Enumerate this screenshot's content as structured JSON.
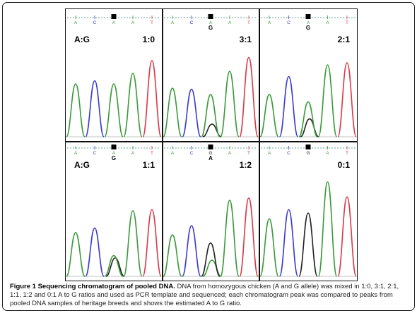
{
  "colors": {
    "base_A": "#3a9a3a",
    "base_C": "#3a3ad0",
    "base_G": "#222222",
    "base_T": "#d83a4a",
    "panel_border": "#111111"
  },
  "figure": {
    "panels": [
      {
        "id": "p1",
        "ratio_label": "1:0",
        "ag_label": "A:G",
        "bases": [
          "A",
          "C",
          "A",
          "A",
          "T"
        ],
        "marker_index": 2,
        "marker_letters": [],
        "peaks": [
          {
            "base": "A",
            "height": 0.5
          },
          {
            "base": "C",
            "height": 0.53
          },
          {
            "base": "A",
            "height": 0.5
          },
          {
            "base": "A",
            "height": 0.6
          },
          {
            "base": "T",
            "height": 0.72
          }
        ],
        "secondary_peaks": []
      },
      {
        "id": "p2",
        "ratio_label": "3:1",
        "ag_label": "",
        "bases": [
          "A",
          "C",
          "A",
          "A",
          "T"
        ],
        "marker_index": 2,
        "marker_letters": [
          "G"
        ],
        "peaks": [
          {
            "base": "A",
            "height": 0.46
          },
          {
            "base": "C",
            "height": 0.45
          },
          {
            "base": "A",
            "height": 0.4
          },
          {
            "base": "A",
            "height": 0.62
          },
          {
            "base": "T",
            "height": 0.75
          }
        ],
        "secondary_peaks": [
          {
            "base": "G",
            "at": 2,
            "height": 0.12
          }
        ]
      },
      {
        "id": "p3",
        "ratio_label": "2:1",
        "ag_label": "",
        "bases": [
          "A",
          "C",
          "A",
          "A",
          "T"
        ],
        "marker_index": 2,
        "marker_letters": [
          "G"
        ],
        "peaks": [
          {
            "base": "A",
            "height": 0.4
          },
          {
            "base": "C",
            "height": 0.57
          },
          {
            "base": "A",
            "height": 0.33
          },
          {
            "base": "A",
            "height": 0.68
          },
          {
            "base": "T",
            "height": 0.7
          }
        ],
        "secondary_peaks": [
          {
            "base": "G",
            "at": 2,
            "height": 0.17
          }
        ]
      },
      {
        "id": "p4",
        "ratio_label": "1:1",
        "ag_label": "A:G",
        "bases": [
          "A",
          "C",
          "A",
          "A",
          "T"
        ],
        "marker_index": 2,
        "marker_letters": [
          "G"
        ],
        "peaks": [
          {
            "base": "A",
            "height": 0.38
          },
          {
            "base": "C",
            "height": 0.42
          },
          {
            "base": "A",
            "height": 0.18
          },
          {
            "base": "A",
            "height": 0.57
          },
          {
            "base": "T",
            "height": 0.58
          }
        ],
        "secondary_peaks": [
          {
            "base": "G",
            "at": 2,
            "height": 0.16
          }
        ]
      },
      {
        "id": "p5",
        "ratio_label": "1:2",
        "ag_label": "",
        "bases": [
          "A",
          "C",
          "G",
          "A",
          "T"
        ],
        "marker_index": 2,
        "marker_letters": [
          "A"
        ],
        "peaks": [
          {
            "base": "A",
            "height": 0.36
          },
          {
            "base": "C",
            "height": 0.44
          },
          {
            "base": "G",
            "height": 0.29
          },
          {
            "base": "A",
            "height": 0.66
          },
          {
            "base": "T",
            "height": 0.68
          }
        ],
        "secondary_peaks": [
          {
            "base": "A",
            "at": 2,
            "height": 0.14
          }
        ]
      },
      {
        "id": "p6",
        "ratio_label": "0:1",
        "ag_label": "",
        "bases": [
          "A",
          "C",
          "G",
          "A",
          "T"
        ],
        "marker_index": 2,
        "marker_letters": [],
        "peaks": [
          {
            "base": "A",
            "height": 0.5
          },
          {
            "base": "C",
            "height": 0.58
          },
          {
            "base": "G",
            "height": 0.55
          },
          {
            "base": "A",
            "height": 0.82
          },
          {
            "base": "T",
            "height": 0.69
          }
        ],
        "secondary_peaks": []
      }
    ]
  },
  "caption": {
    "title": "Figure 1 Sequencing chromatogram of pooled DNA.",
    "body": " DNA from homozygous chicken (A and G allele) was mixed in 1:0, 3:1, 2:1, 1:1, 1:2 and 0:1 A to G ratios and used as PCR template and sequenced; each chromatogram peak was compared to peaks from pooled DNA samples of heritage breeds and shows the estimated A to G ratio."
  }
}
